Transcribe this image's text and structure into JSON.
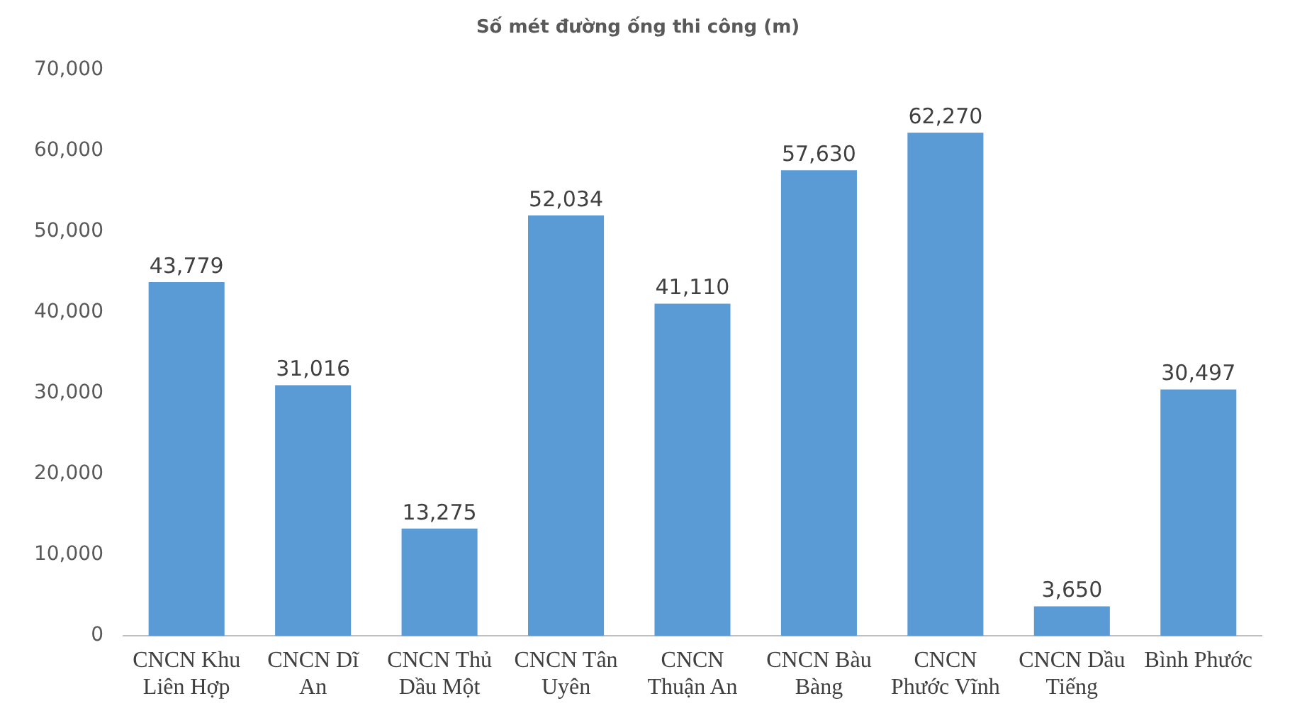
{
  "chart_data": {
    "type": "bar",
    "title": "Số mét đường ống thi công (m)",
    "categories": [
      "CNCN Khu Liên Hợp",
      "CNCN Dĩ An",
      "CNCN Thủ Dầu Một",
      "CNCN Tân Uyên",
      "CNCN Thuận An",
      "CNCN Bàu Bàng",
      "CNCN Phước Vĩnh",
      "CNCN Dầu Tiếng",
      "Bình Phước"
    ],
    "values": [
      43779,
      31016,
      13275,
      52034,
      41110,
      57630,
      62270,
      3650,
      30497
    ],
    "value_labels": [
      "43,779",
      "31,016",
      "13,275",
      "52,034",
      "41,110",
      "57,630",
      "62,270",
      "3,650",
      "30,497"
    ],
    "color": "#5b9bd5",
    "ylim": [
      0,
      70000
    ],
    "yticks": [
      0,
      {
        "value": 10000,
        "label": "10,000"
      },
      {
        "value": 20000,
        "label": "20,000"
      },
      {
        "value": 30000,
        "label": "30,000"
      },
      {
        "value": 40000,
        "label": "40,000"
      },
      {
        "value": 50000,
        "label": "50,000"
      },
      {
        "value": 60000,
        "label": "60,000"
      },
      {
        "value": 70000,
        "label": "70,000"
      }
    ],
    "grid": false,
    "legend": false
  }
}
